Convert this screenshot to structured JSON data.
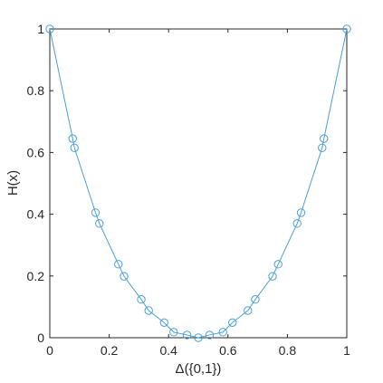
{
  "chart_data": {
    "type": "line",
    "title": "",
    "xlabel": "Δ({0,1})",
    "ylabel": "H(x)",
    "xlim": [
      0,
      1
    ],
    "ylim": [
      0,
      1
    ],
    "xticks": [
      "0",
      "0.2",
      "0.4",
      "0.6",
      "0.8",
      "1"
    ],
    "yticks": [
      "0",
      "0.2",
      "0.4",
      "0.6",
      "0.8",
      "1"
    ],
    "grid": false,
    "line_color": "#4a9fd4",
    "series": [
      {
        "marker": "circle",
        "points": [
          [
            0.0,
            1.0
          ],
          [
            0.077,
            0.645
          ],
          [
            0.083,
            0.615
          ],
          [
            0.154,
            0.405
          ],
          [
            0.167,
            0.37
          ],
          [
            0.231,
            0.238
          ],
          [
            0.25,
            0.199
          ],
          [
            0.308,
            0.124
          ],
          [
            0.333,
            0.088
          ],
          [
            0.385,
            0.049
          ],
          [
            0.417,
            0.018
          ],
          [
            0.462,
            0.009
          ],
          [
            0.5,
            0.0
          ],
          [
            0.538,
            0.009
          ],
          [
            0.583,
            0.018
          ],
          [
            0.615,
            0.049
          ],
          [
            0.667,
            0.088
          ],
          [
            0.692,
            0.124
          ],
          [
            0.75,
            0.199
          ],
          [
            0.769,
            0.238
          ],
          [
            0.833,
            0.37
          ],
          [
            0.846,
            0.405
          ],
          [
            0.917,
            0.615
          ],
          [
            0.923,
            0.645
          ],
          [
            1.0,
            1.0
          ]
        ]
      }
    ]
  }
}
